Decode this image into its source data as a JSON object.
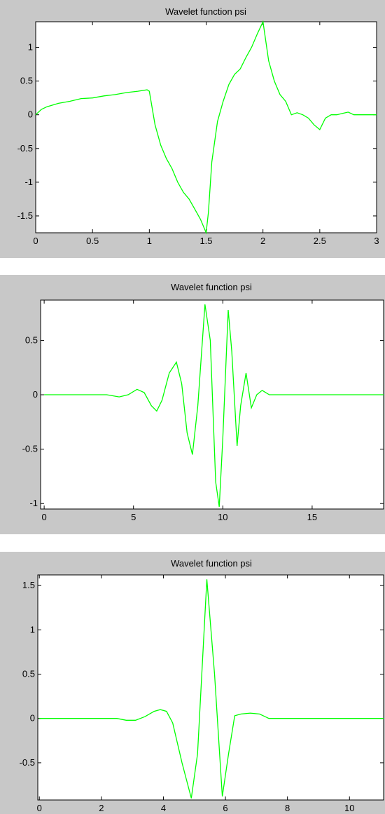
{
  "chart_data": [
    {
      "type": "line",
      "title": "Wavelet function psi",
      "xlabel": "",
      "ylabel": "",
      "xlim": [
        0,
        3
      ],
      "ylim": [
        -1.75,
        1.38
      ],
      "xticks": [
        0,
        0.5,
        1,
        1.5,
        2,
        2.5,
        3
      ],
      "xtick_labels": [
        "0",
        "0.5",
        "1",
        "1.5",
        "2",
        "2.5",
        "3"
      ],
      "yticks": [
        -1.5,
        -1,
        -0.5,
        0,
        0.5,
        1
      ],
      "ytick_labels": [
        "-1.5",
        "-1",
        "-0.5",
        "0",
        "0.5",
        "1"
      ],
      "grid": false,
      "series": [
        {
          "color": "#00ff00",
          "x": [
            0,
            0.05,
            0.1,
            0.2,
            0.3,
            0.4,
            0.5,
            0.6,
            0.7,
            0.8,
            0.9,
            0.98,
            1.0,
            1.05,
            1.1,
            1.15,
            1.2,
            1.25,
            1.3,
            1.35,
            1.4,
            1.45,
            1.5,
            1.52,
            1.55,
            1.6,
            1.65,
            1.7,
            1.75,
            1.8,
            1.85,
            1.9,
            1.95,
            2.0,
            2.05,
            2.1,
            2.15,
            2.2,
            2.25,
            2.3,
            2.35,
            2.4,
            2.45,
            2.5,
            2.55,
            2.6,
            2.65,
            2.7,
            2.75,
            2.8,
            2.85,
            2.9,
            3.0
          ],
          "y": [
            0,
            0.08,
            0.12,
            0.17,
            0.2,
            0.24,
            0.25,
            0.28,
            0.3,
            0.33,
            0.35,
            0.37,
            0.35,
            -0.15,
            -0.45,
            -0.65,
            -0.8,
            -1.0,
            -1.15,
            -1.25,
            -1.4,
            -1.55,
            -1.75,
            -1.45,
            -0.7,
            -0.1,
            0.2,
            0.45,
            0.6,
            0.68,
            0.85,
            1.0,
            1.2,
            1.38,
            0.8,
            0.5,
            0.3,
            0.2,
            0.0,
            0.03,
            0.0,
            -0.05,
            -0.15,
            -0.22,
            -0.05,
            0.0,
            0.0,
            0.02,
            0.04,
            0.0,
            0.0,
            0.0,
            0.0
          ]
        }
      ]
    },
    {
      "type": "line",
      "title": "Wavelet function psi",
      "xlabel": "",
      "ylabel": "",
      "xlim": [
        -0.2,
        19
      ],
      "ylim": [
        -1.05,
        0.87
      ],
      "xticks": [
        0,
        5,
        10,
        15
      ],
      "xtick_labels": [
        "0",
        "5",
        "10",
        "15"
      ],
      "yticks": [
        -1,
        -0.5,
        0,
        0.5
      ],
      "ytick_labels": [
        "-1",
        "-0.5",
        "0",
        "0.5"
      ],
      "grid": false,
      "series": [
        {
          "color": "#00ff00",
          "x": [
            0,
            3.5,
            4.2,
            4.7,
            5.2,
            5.6,
            6.0,
            6.3,
            6.6,
            7.0,
            7.4,
            7.7,
            8.0,
            8.3,
            8.6,
            9.0,
            9.3,
            9.6,
            9.8,
            10.0,
            10.3,
            10.5,
            10.8,
            11.0,
            11.3,
            11.6,
            11.9,
            12.2,
            12.6,
            13.0,
            19.0
          ],
          "y": [
            0,
            0,
            -0.02,
            0.0,
            0.05,
            0.02,
            -0.1,
            -0.15,
            -0.05,
            0.2,
            0.3,
            0.1,
            -0.35,
            -0.55,
            -0.1,
            0.83,
            0.5,
            -0.8,
            -1.03,
            -0.4,
            0.78,
            0.4,
            -0.47,
            -0.1,
            0.2,
            -0.12,
            0.0,
            0.04,
            0.0,
            0.0,
            0.0
          ]
        }
      ]
    },
    {
      "type": "line",
      "title": "Wavelet function psi",
      "xlabel": "",
      "ylabel": "",
      "xlim": [
        -0.05,
        11.1
      ],
      "ylim": [
        -0.92,
        1.62
      ],
      "xticks": [
        0,
        2,
        4,
        6,
        8,
        10
      ],
      "xtick_labels": [
        "0",
        "2",
        "4",
        "6",
        "8",
        "10"
      ],
      "yticks": [
        -0.5,
        0,
        0.5,
        1,
        1.5
      ],
      "ytick_labels": [
        "-0.5",
        "0",
        "0.5",
        "1",
        "1.5"
      ],
      "grid": false,
      "series": [
        {
          "color": "#00ff00",
          "x": [
            0,
            2.5,
            2.8,
            3.1,
            3.4,
            3.7,
            3.9,
            4.1,
            4.3,
            4.6,
            4.9,
            5.1,
            5.4,
            5.65,
            5.9,
            6.1,
            6.3,
            6.5,
            6.8,
            7.1,
            7.4,
            8.0,
            11.1
          ],
          "y": [
            0,
            0,
            -0.02,
            -0.02,
            0.02,
            0.08,
            0.1,
            0.08,
            -0.05,
            -0.5,
            -0.9,
            -0.4,
            1.57,
            0.5,
            -0.88,
            -0.4,
            0.03,
            0.05,
            0.06,
            0.05,
            0.0,
            0.0,
            0.0
          ]
        }
      ]
    }
  ]
}
